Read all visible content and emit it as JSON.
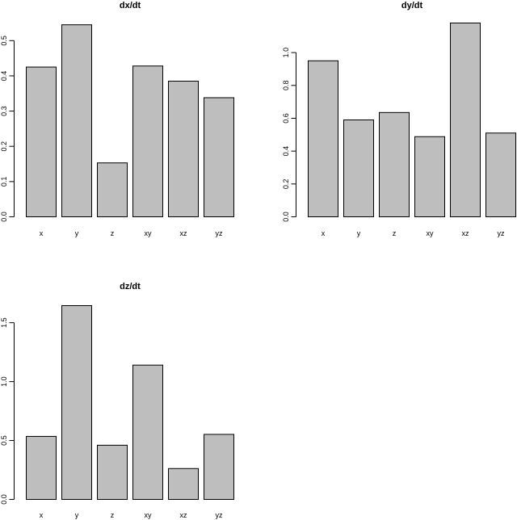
{
  "chart_data": [
    {
      "type": "bar",
      "title": "dx/dt",
      "categories": [
        "x",
        "y",
        "z",
        "xy",
        "xz",
        "yz"
      ],
      "values": [
        0.425,
        0.545,
        0.153,
        0.428,
        0.385,
        0.338
      ],
      "ylim": [
        0,
        0.55
      ],
      "yticks": [
        0.0,
        0.1,
        0.2,
        0.3,
        0.4,
        0.5
      ],
      "ytick_labels": [
        "0.0",
        "0.1",
        "0.2",
        "0.3",
        "0.4",
        "0.5"
      ],
      "bar_color": "#bebebe",
      "grid": false
    },
    {
      "type": "bar",
      "title": "dy/dt",
      "categories": [
        "x",
        "y",
        "z",
        "xy",
        "xz",
        "yz"
      ],
      "values": [
        0.95,
        0.59,
        0.635,
        0.488,
        1.18,
        0.51
      ],
      "ylim": [
        0,
        1.18
      ],
      "yticks": [
        0.0,
        0.2,
        0.4,
        0.6,
        0.8,
        1.0
      ],
      "ytick_labels": [
        "0.0",
        "0.2",
        "0.4",
        "0.6",
        "0.8",
        "1.0"
      ],
      "bar_color": "#bebebe",
      "grid": false
    },
    {
      "type": "bar",
      "title": "dz/dt",
      "categories": [
        "x",
        "y",
        "z",
        "xy",
        "xz",
        "yz"
      ],
      "values": [
        0.535,
        1.645,
        0.46,
        1.14,
        0.262,
        0.552
      ],
      "ylim": [
        0,
        1.645
      ],
      "yticks": [
        0.0,
        0.5,
        1.0,
        1.5
      ],
      "ytick_labels": [
        "0.0",
        "0.5",
        "1.0",
        "1.5"
      ],
      "bar_color": "#bebebe",
      "grid": false
    }
  ]
}
